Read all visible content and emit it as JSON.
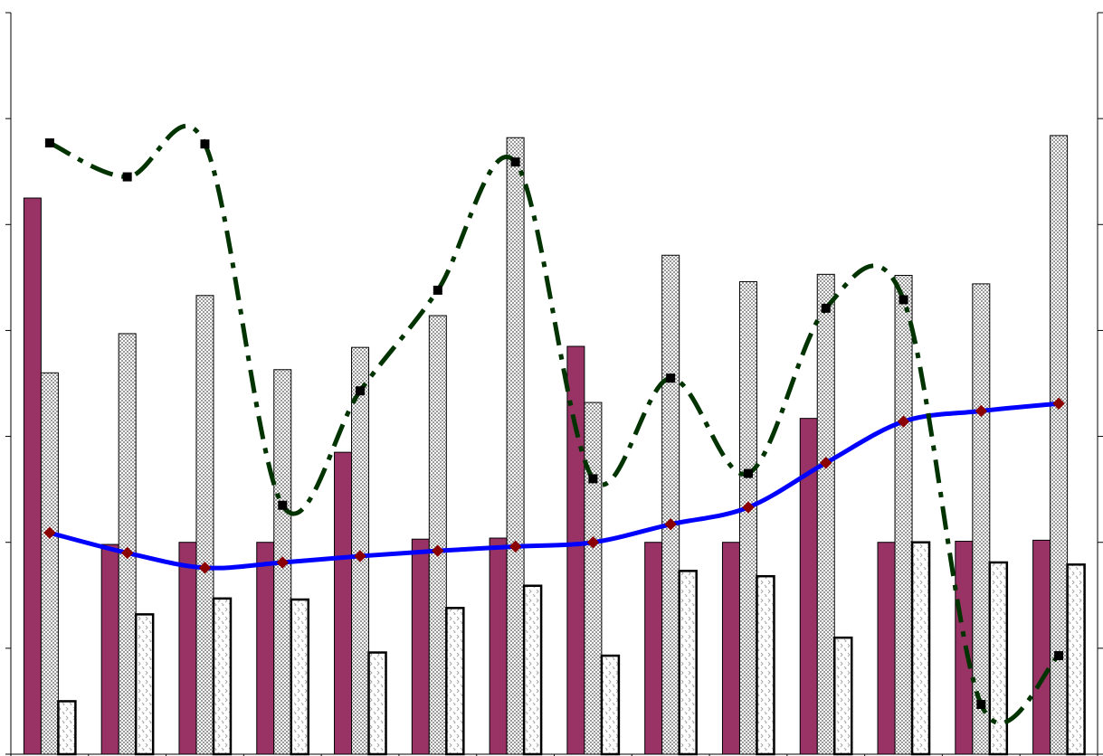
{
  "chart_data": {
    "type": "bar",
    "title": "",
    "xlabel": "",
    "ylabel": "",
    "categories": [
      "",
      "",
      "",
      "",
      "",
      "",
      "",
      "",
      "",
      "",
      "",
      "",
      "",
      ""
    ],
    "ylim_left": [
      0,
      7
    ],
    "ylim_right": [
      0,
      7
    ],
    "grid": false,
    "legend": "none",
    "series": [
      {
        "kind": "bar",
        "axis": "left",
        "color": "#993366",
        "pattern": "solid",
        "values": [
          5.25,
          1.98,
          2.0,
          2.0,
          2.85,
          2.03,
          2.04,
          3.85,
          2.0,
          2.0,
          3.17,
          2.0,
          2.01,
          2.02
        ]
      },
      {
        "kind": "bar",
        "axis": "left",
        "color": "#c8c8c8",
        "pattern": "checker",
        "values": [
          3.6,
          3.97,
          4.33,
          3.63,
          3.84,
          4.14,
          5.82,
          3.32,
          4.71,
          4.46,
          4.53,
          4.52,
          4.44,
          5.84
        ]
      },
      {
        "kind": "bar",
        "axis": "left",
        "color": "#ffffff",
        "pattern": "chevron",
        "values": [
          0.5,
          1.32,
          1.47,
          1.46,
          0.96,
          1.38,
          1.59,
          0.93,
          1.73,
          1.68,
          1.1,
          2.0,
          1.81,
          1.79
        ]
      },
      {
        "kind": "line",
        "axis": "right",
        "color": "#0000ff",
        "marker": "diamond",
        "marker_color": "#8b0000",
        "dash": "solid",
        "smooth": true,
        "values": [
          2.09,
          1.9,
          1.76,
          1.81,
          1.87,
          1.92,
          1.96,
          2.0,
          2.17,
          2.33,
          2.75,
          3.14,
          3.24,
          3.31
        ]
      },
      {
        "kind": "line",
        "axis": "right",
        "color": "#003300",
        "marker": "square",
        "marker_color": "#000000",
        "dash": "dash-dot",
        "smooth": true,
        "values": [
          5.77,
          5.45,
          5.76,
          2.35,
          3.43,
          4.38,
          5.59,
          2.6,
          3.55,
          2.65,
          4.21,
          4.29,
          0.47,
          0.93
        ]
      }
    ]
  }
}
